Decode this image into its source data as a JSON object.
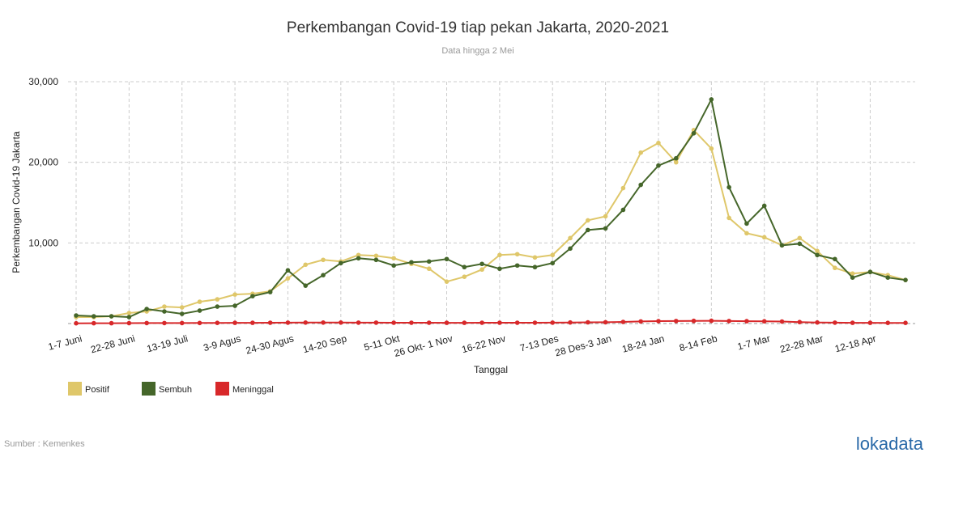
{
  "chart_data": {
    "type": "line",
    "title": "Perkembangan Covid-19 tiap pekan Jakarta, 2020-2021",
    "subtitle": "Data hingga 2 Mei",
    "x_label": "Tanggal",
    "y_label": "Perkembangan Covid-19 Jakarta",
    "source": "Sumber : Kemenkes",
    "logo": "lokadata",
    "categories": [
      "1-7 Juni",
      null,
      null,
      "22-28 Juni",
      null,
      null,
      "13-19 Juli",
      null,
      null,
      "3-9 Agus",
      null,
      null,
      "24-30 Agus",
      null,
      null,
      "14-20 Sep",
      null,
      null,
      "5-11 Okt",
      null,
      null,
      "26 Okt- 1 Nov",
      null,
      null,
      "16-22 Nov",
      null,
      null,
      "7-13 Des",
      null,
      null,
      "28 Des-3 Jan",
      null,
      null,
      "18-24 Jan",
      null,
      null,
      "8-14 Feb",
      null,
      null,
      "1-7 Mar",
      null,
      null,
      "22-28 Mar",
      null,
      null,
      "12-18 Apr",
      null,
      null
    ],
    "series": [
      {
        "name": "Positif",
        "color": "#dfc76a",
        "values": [
          800,
          800,
          900,
          1300,
          1500,
          2100,
          2000,
          2700,
          3000,
          3600,
          3700,
          4000,
          5600,
          7300,
          7900,
          7700,
          8500,
          8400,
          8100,
          7400,
          6800,
          5200,
          5800,
          6700,
          8500,
          8600,
          8200,
          8500,
          10600,
          12800,
          13300,
          16800,
          21200,
          22400,
          20000,
          24000,
          21700,
          13100,
          11200,
          10700,
          9700,
          10600,
          9000,
          6900,
          6200,
          6400,
          6000,
          5400
        ]
      },
      {
        "name": "Sembuh",
        "color": "#45662a",
        "values": [
          1000,
          900,
          900,
          800,
          1800,
          1500,
          1200,
          1600,
          2100,
          2200,
          3400,
          3900,
          6600,
          4700,
          6000,
          7500,
          8100,
          7900,
          7200,
          7600,
          7700,
          8000,
          7000,
          7400,
          6800,
          7200,
          7000,
          7500,
          9300,
          11600,
          11800,
          14100,
          17200,
          19600,
          20500,
          23600,
          27800,
          16900,
          12400,
          14600,
          9700,
          9900,
          8500,
          8000,
          5700,
          6400,
          5700,
          5400
        ]
      },
      {
        "name": "Meninggal",
        "color": "#d8282a",
        "values": [
          30,
          40,
          40,
          50,
          60,
          60,
          60,
          70,
          80,
          90,
          90,
          100,
          110,
          120,
          120,
          120,
          110,
          110,
          100,
          100,
          100,
          90,
          90,
          100,
          100,
          100,
          100,
          110,
          130,
          150,
          160,
          200,
          260,
          300,
          310,
          330,
          340,
          310,
          290,
          280,
          250,
          180,
          130,
          110,
          90,
          90,
          80,
          80
        ]
      }
    ],
    "ylim": [
      0,
      30000
    ],
    "yticks": [
      {
        "value": 10000,
        "label": "10,000"
      },
      {
        "value": 20000,
        "label": "20,000"
      },
      {
        "value": 30000,
        "label": "30,000"
      }
    ],
    "grid": true
  }
}
